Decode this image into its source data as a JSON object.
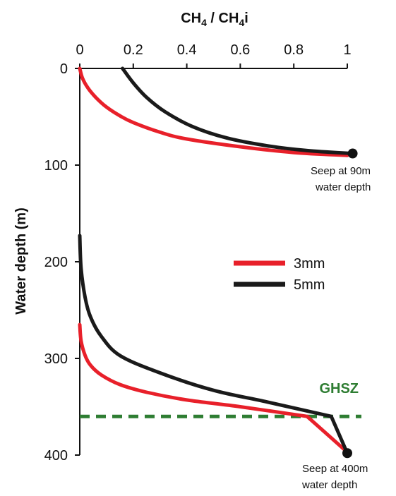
{
  "chart_data": {
    "type": "line",
    "title": "",
    "xlabel": "CH4 / CH4i",
    "ylabel": "Water depth (m)",
    "xlim": [
      0,
      1
    ],
    "ylim": [
      0,
      400
    ],
    "y_inverted": true,
    "x_axis_position": "top",
    "x_ticks": [
      "0",
      "0.2",
      "0.4",
      "0.6",
      "0.8",
      "1"
    ],
    "y_ticks": [
      "0",
      "100",
      "200",
      "300",
      "400"
    ],
    "legend_position": "center-right",
    "series": [
      {
        "name": "3mm",
        "color": "#e8202a",
        "segments": [
          {
            "x": [
              1.0,
              0.8,
              0.6,
              0.4,
              0.3,
              0.2,
              0.15,
              0.1,
              0.06,
              0.03,
              0.01,
              0.0
            ],
            "y": [
              90,
              87,
              81,
              73,
              66,
              56,
              49,
              40,
              30,
              20,
              10,
              0
            ]
          },
          {
            "x": [
              1.0,
              0.85,
              0.6,
              0.4,
              0.25,
              0.15,
              0.08,
              0.04,
              0.02,
              0.005,
              0.0
            ],
            "y": [
              397,
              360,
              350,
              343,
              335,
              327,
              317,
              307,
              297,
              282,
              265
            ]
          }
        ]
      },
      {
        "name": "5mm",
        "color": "#1a1a1a",
        "segments": [
          {
            "x": [
              1.02,
              0.85,
              0.7,
              0.55,
              0.42,
              0.32,
              0.25,
              0.2,
              0.16
            ],
            "y": [
              88,
              85,
              80,
              72,
              60,
              45,
              30,
              15,
              0
            ]
          },
          {
            "x": [
              1.0,
              0.94,
              0.7,
              0.5,
              0.3,
              0.15,
              0.08,
              0.04,
              0.02,
              0.005,
              0.0
            ],
            "y": [
              398,
              360,
              345,
              333,
              315,
              297,
              277,
              257,
              237,
              207,
              173
            ]
          }
        ]
      }
    ],
    "endpoints": [
      {
        "x": 1.02,
        "y": 88
      },
      {
        "x": 1.0,
        "y": 398
      }
    ],
    "reference_lines": [
      {
        "label": "GHSZ",
        "y": 360,
        "style": "dashed",
        "color": "#2e7d32"
      }
    ],
    "annotations": [
      {
        "lines": [
          "Seep at 90m",
          "water depth"
        ]
      },
      {
        "lines": [
          "Seep at 400m",
          "water depth"
        ]
      }
    ]
  }
}
